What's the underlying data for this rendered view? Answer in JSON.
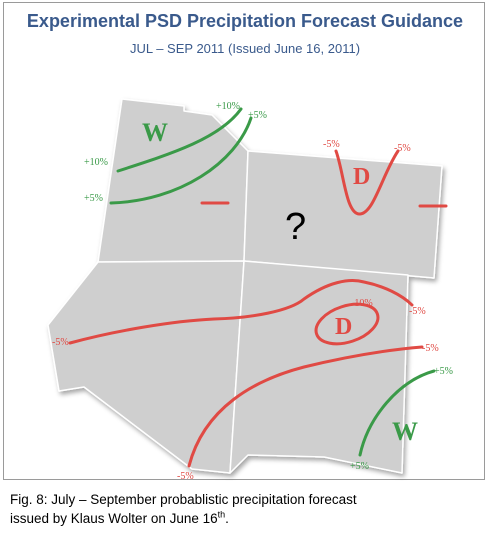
{
  "title": "Experimental PSD Precipitation Forecast Guidance",
  "subtitle": "JUL – SEP  2011 (Issued June 16, 2011)",
  "map": {
    "regions": [
      {
        "name": "W",
        "kind": "wet"
      },
      {
        "name": "D",
        "kind": "dry"
      },
      {
        "name": "?",
        "kind": "uncertain"
      },
      {
        "name": "D",
        "kind": "dry"
      },
      {
        "name": "W",
        "kind": "wet"
      }
    ],
    "contour_labels": [
      "+10%",
      "+5%",
      "+10%",
      "+5%",
      "-5%",
      "-5%",
      "-10%",
      "-5%",
      "-5%",
      "-5%",
      "+5%",
      "-5%",
      "+5%"
    ],
    "colors": {
      "wet": "#3a9a48",
      "dry": "#e04a44",
      "land": "#cfcfcf",
      "land_border": "#ffffff",
      "question": "#000000"
    }
  },
  "caption": {
    "line1": "Fig. 8: July – September probablistic precipitation forecast",
    "line2_prefix": "issued by Klaus Wolter on June 16",
    "line2_sup": "th",
    "line2_suffix": "."
  }
}
